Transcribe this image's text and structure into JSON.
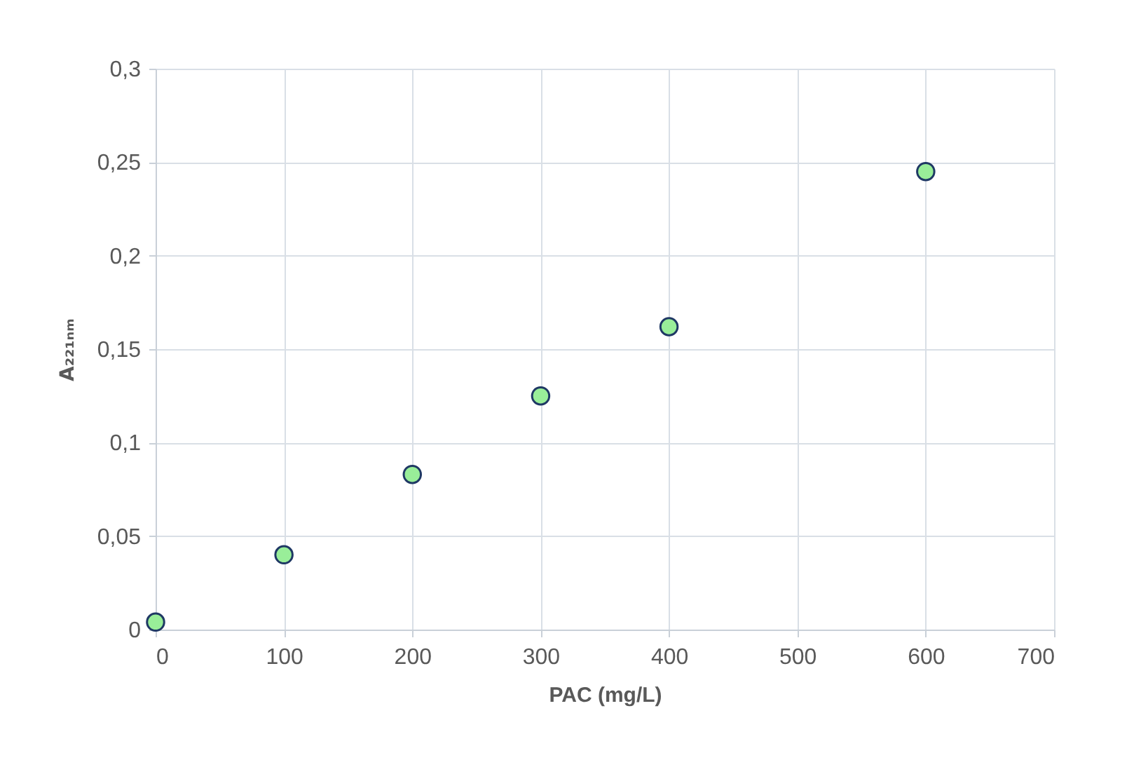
{
  "chart_data": {
    "type": "scatter",
    "xlabel": "PAC (mg/L)",
    "ylabel": "A₂₂₁ₙₘ",
    "x": [
      0,
      100,
      200,
      300,
      400,
      600
    ],
    "series": [
      {
        "color": "#99ee99",
        "values": [
          0.004,
          0.04,
          0.083,
          0.125,
          0.162,
          0.245
        ]
      }
    ],
    "xlim": [
      0,
      700
    ],
    "xticks": [
      0,
      100,
      200,
      300,
      400,
      500,
      600,
      700
    ],
    "ylim": [
      0,
      0.3
    ],
    "yticks": [
      {
        "value": 0,
        "label": "0"
      },
      {
        "value": 0.05,
        "label": "0,05"
      },
      {
        "value": 0.1,
        "label": "0,1"
      },
      {
        "value": 0.15,
        "label": "0,15"
      },
      {
        "value": 0.2,
        "label": "0,2"
      },
      {
        "value": 0.25,
        "label": "0,25"
      },
      {
        "value": 0.3,
        "label": "0,3"
      }
    ],
    "grid": true,
    "marker": "circle"
  }
}
